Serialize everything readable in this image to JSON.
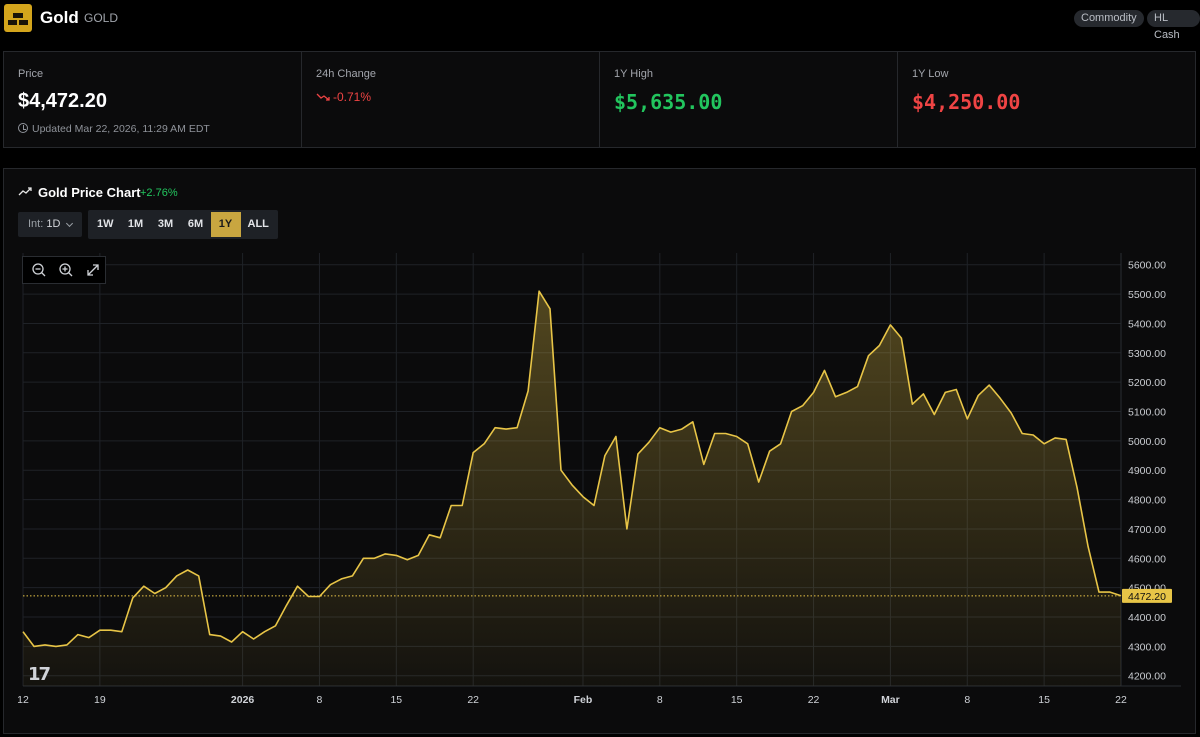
{
  "header": {
    "asset_name": "Gold",
    "asset_ticker": "GOLD",
    "tags": [
      "Commodity",
      "HL Cash"
    ]
  },
  "stats": {
    "price_label": "Price",
    "price_value": "$4,472.20",
    "updated": "Updated Mar 22, 2026, 11:29 AM EDT",
    "change_label": "24h Change",
    "change_value": "-0.71%",
    "high_label": "1Y High",
    "high_value": "$5,635.00",
    "low_label": "1Y Low",
    "low_value": "$4,250.00"
  },
  "chart_panel": {
    "title": "Gold Price Chart",
    "pct_change": "+2.76%",
    "interval_label": "Int:",
    "interval_value": "1D",
    "ranges": [
      "1W",
      "1M",
      "3M",
      "6M",
      "1Y",
      "ALL"
    ],
    "active_range": "1Y"
  },
  "colors": {
    "accent": "#c9a640",
    "line": "#e8c547",
    "up": "#22c55e",
    "down": "#ef4444"
  },
  "icons": [
    "gold-bars-icon",
    "clock-icon",
    "trend-down-icon",
    "trend-up-icon",
    "zoom-out-icon",
    "zoom-in-icon",
    "expand-icon",
    "tradingview-logo"
  ],
  "chart_data": {
    "type": "area",
    "x_tick_labels": [
      "12",
      "19",
      "2026",
      "8",
      "15",
      "22",
      "Feb",
      "8",
      "15",
      "22",
      "Mar",
      "8",
      "15",
      "22"
    ],
    "x_tick_day_index": [
      0,
      7,
      20,
      27,
      34,
      41,
      51,
      58,
      65,
      72,
      79,
      86,
      93,
      100
    ],
    "y_ticks": [
      4200,
      4300,
      4400,
      4500,
      4600,
      4700,
      4800,
      4900,
      5000,
      5100,
      5200,
      5300,
      5400,
      5500,
      5600
    ],
    "ylim": [
      4165,
      5640
    ],
    "xlim": [
      0,
      100
    ],
    "grid": true,
    "last_price_label": "4472.20",
    "last_price": 4472.2,
    "x": [
      0,
      1,
      2,
      3,
      4,
      5,
      6,
      7,
      8,
      9,
      10,
      11,
      12,
      13,
      14,
      15,
      16,
      17,
      18,
      19,
      20,
      21,
      22,
      23,
      24,
      25,
      26,
      27,
      28,
      29,
      30,
      31,
      32,
      33,
      34,
      35,
      36,
      37,
      38,
      39,
      40,
      41,
      42,
      43,
      44,
      45,
      46,
      47,
      48,
      49,
      50,
      51,
      52,
      53,
      54,
      55,
      56,
      57,
      58,
      59,
      60,
      61,
      62,
      63,
      64,
      65,
      66,
      67,
      68,
      69,
      70,
      71,
      72,
      73,
      74,
      75,
      76,
      77,
      78,
      79,
      80,
      81,
      82,
      83,
      84,
      85,
      86,
      87,
      88,
      89,
      90,
      91,
      92,
      93,
      94,
      95,
      96,
      97,
      98,
      99,
      100
    ],
    "values": [
      4350,
      4300,
      4305,
      4300,
      4305,
      4340,
      4330,
      4355,
      4355,
      4350,
      4465,
      4505,
      4480,
      4500,
      4540,
      4560,
      4540,
      4340,
      4335,
      4315,
      4350,
      4325,
      4350,
      4370,
      4440,
      4505,
      4470,
      4470,
      4510,
      4530,
      4540,
      4600,
      4600,
      4615,
      4610,
      4595,
      4610,
      4680,
      4670,
      4780,
      4780,
      4960,
      4990,
      5045,
      5040,
      5045,
      5170,
      5510,
      5450,
      4900,
      4850,
      4810,
      4780,
      4950,
      5015,
      4700,
      4955,
      4995,
      5045,
      5030,
      5040,
      5065,
      4920,
      5025,
      5025,
      5015,
      4990,
      4860,
      4965,
      4990,
      5100,
      5120,
      5165,
      5240,
      5150,
      5165,
      5185,
      5290,
      5325,
      5395,
      5350,
      5125,
      5160,
      5090,
      5165,
      5175,
      5075,
      5155,
      5190,
      5145,
      5095,
      5025,
      5020,
      4990,
      5010,
      5005,
      4840,
      4640,
      4485,
      4485,
      4472.2
    ]
  }
}
